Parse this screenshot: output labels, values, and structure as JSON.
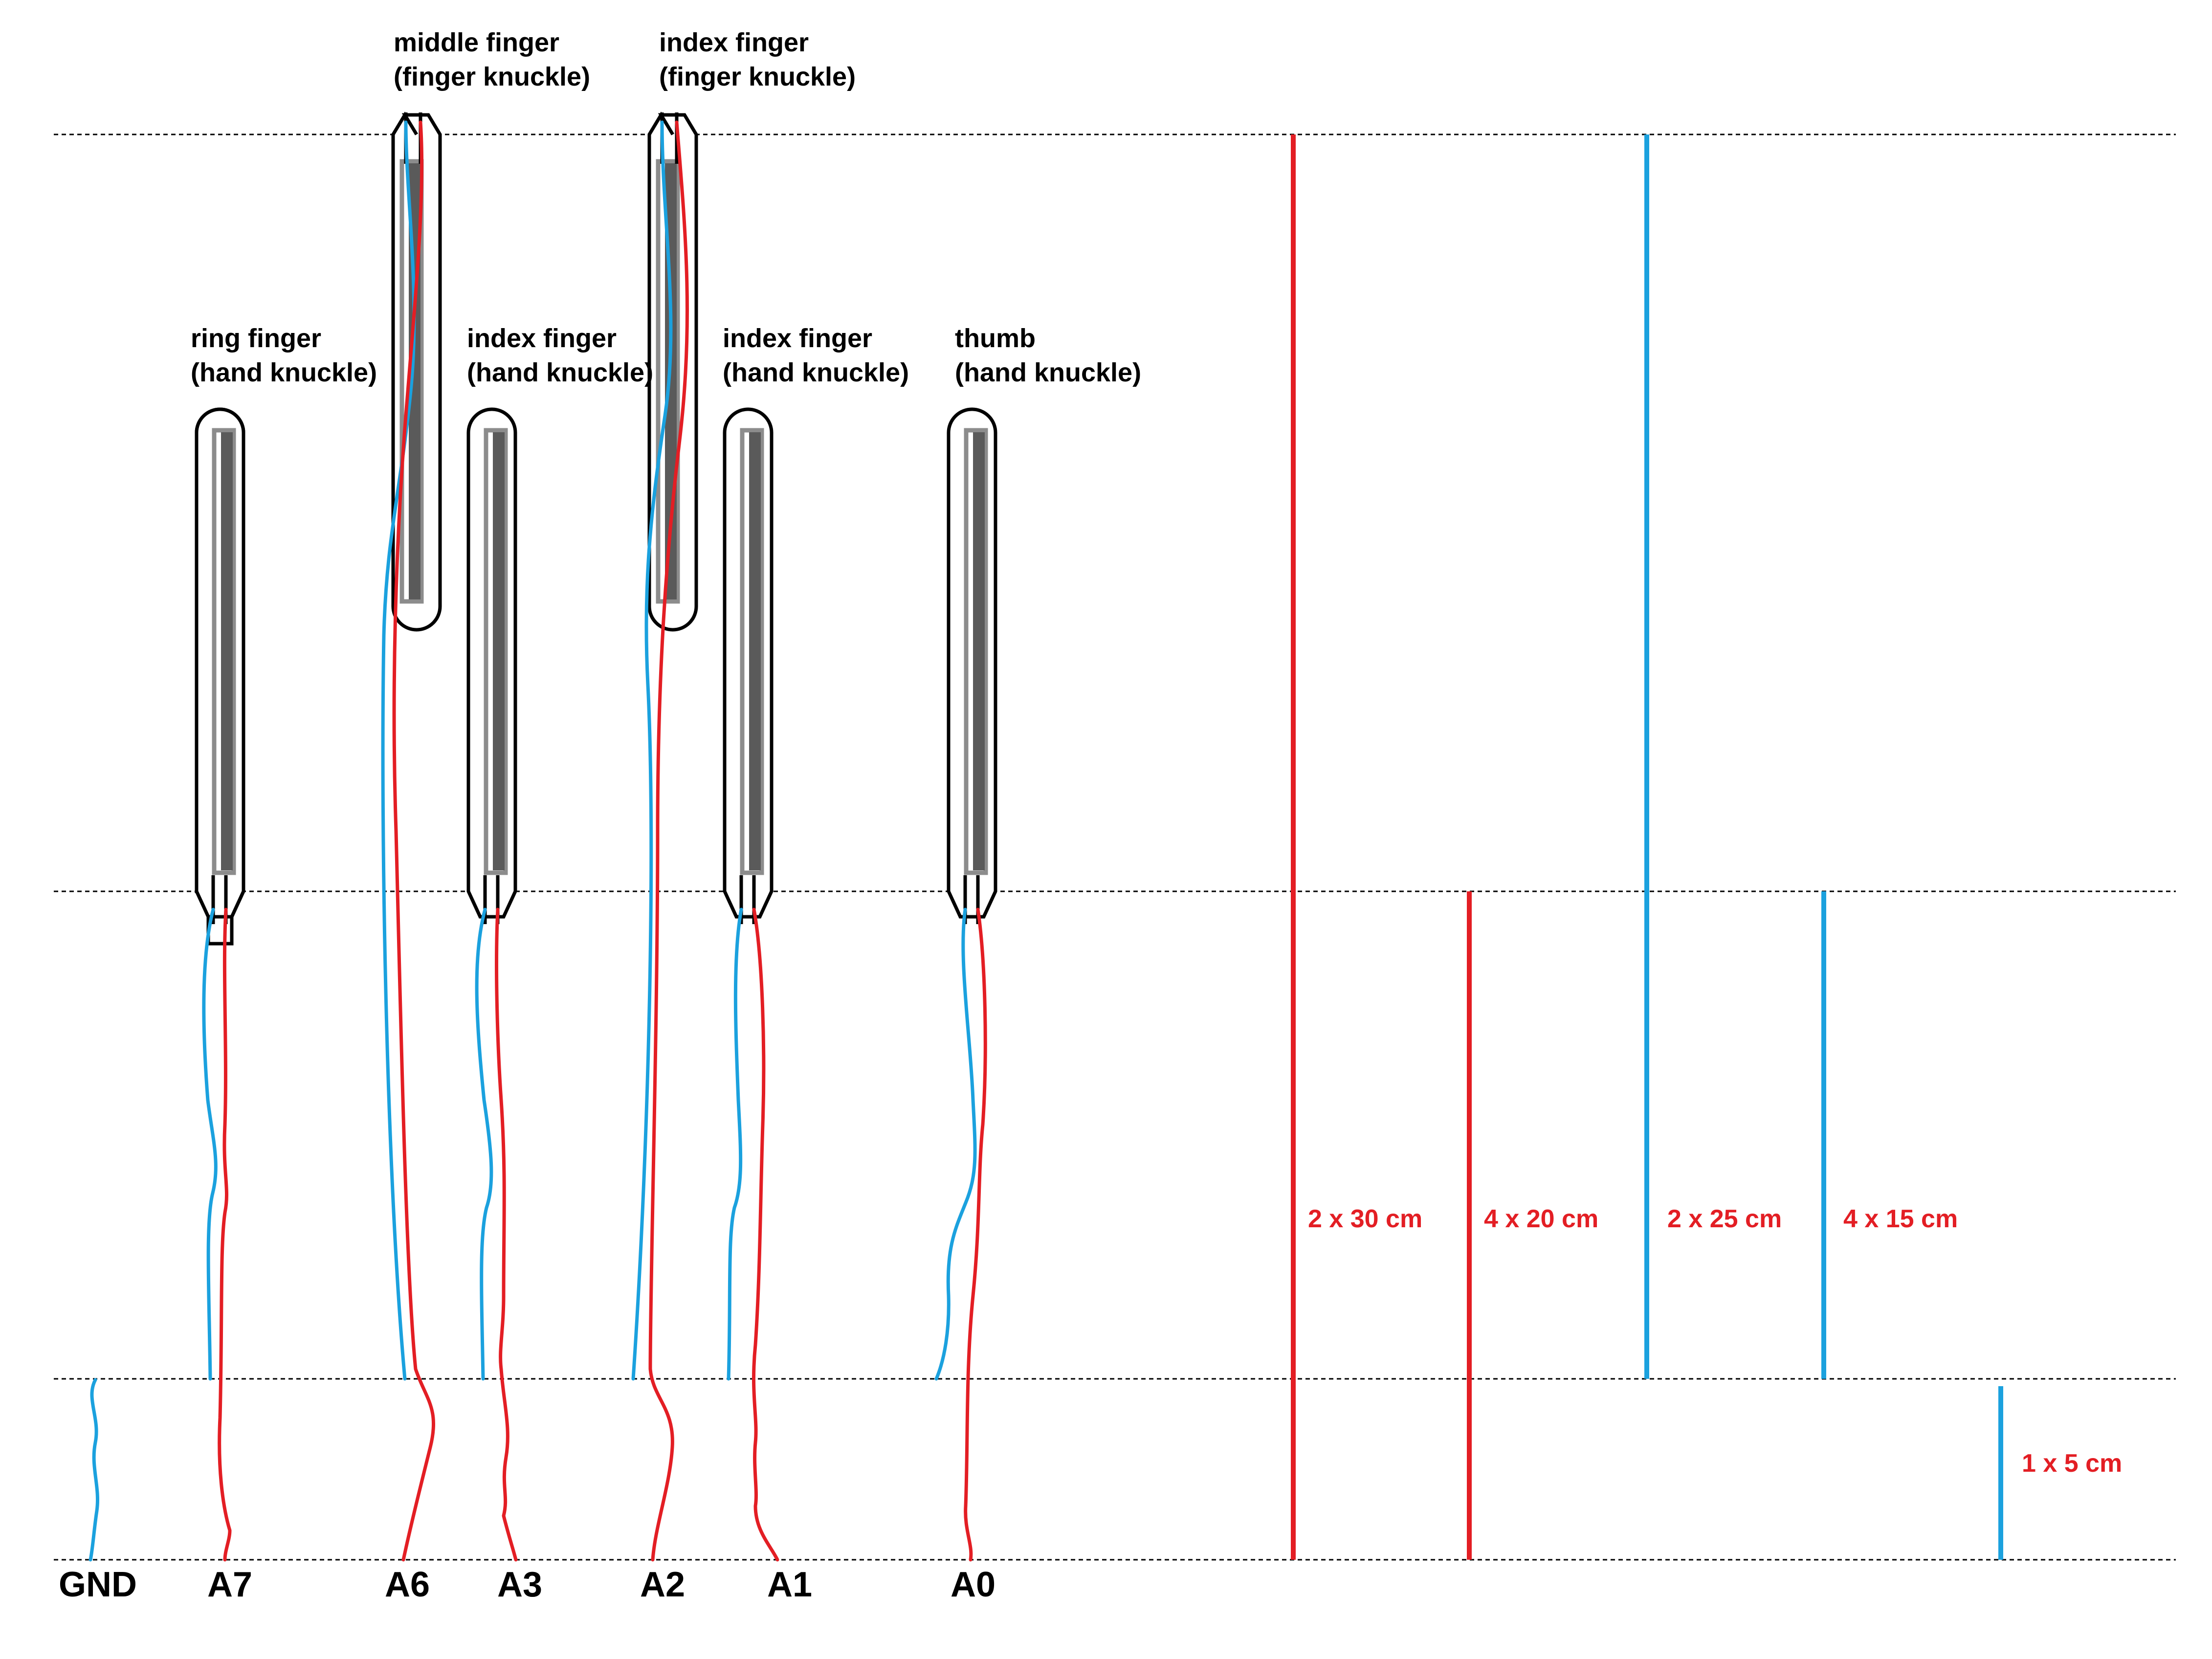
{
  "colors": {
    "blue_wire": "#1ba1de",
    "red_wire": "#e31e24",
    "sensor_outline": "#000000",
    "sensor_strip": "#5a5a5a",
    "sensor_frame": "#8c8c8c"
  },
  "sensors": [
    {
      "id": "ring",
      "line1": "ring finger",
      "line2": "(hand knuckle)"
    },
    {
      "id": "middle",
      "line1": "middle finger",
      "line2": "(finger knuckle)"
    },
    {
      "id": "index-hand-left",
      "line1": "index finger",
      "line2": "(hand knuckle)"
    },
    {
      "id": "index-finger",
      "line1": "index finger",
      "line2": "(finger knuckle)"
    },
    {
      "id": "index-hand-right",
      "line1": "index finger",
      "line2": "(hand knuckle)"
    },
    {
      "id": "thumb",
      "line1": "thumb",
      "line2": "(hand knuckle)"
    }
  ],
  "pins": [
    "GND",
    "A7",
    "A6",
    "A3",
    "A2",
    "A1",
    "A0"
  ],
  "wire_lengths": [
    {
      "label": "2 x 30 cm",
      "color": "red"
    },
    {
      "label": "4 x 20 cm",
      "color": "red"
    },
    {
      "label": "2 x 25 cm",
      "color": "blue"
    },
    {
      "label": "4 x 15 cm",
      "color": "blue"
    },
    {
      "label": "1 x 5 cm",
      "color": "blue"
    }
  ]
}
